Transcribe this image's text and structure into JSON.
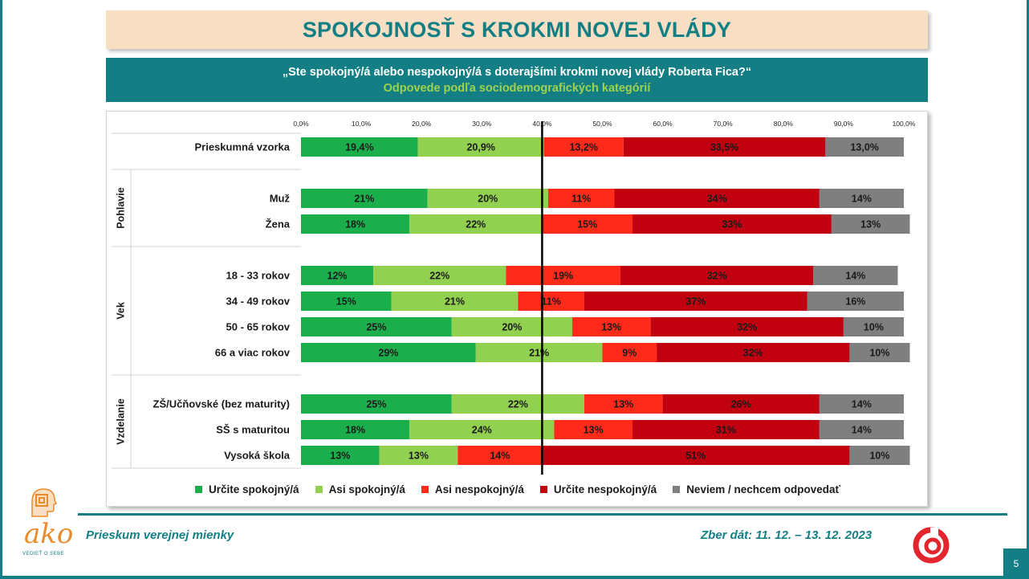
{
  "title": "SPOKOJNOSŤ S KROKMI NOVEJ VLÁDY",
  "question": "„Ste spokojný/á alebo nespokojný/á s doterajšími krokmi novej vlády Roberta Fica?“",
  "subtitle": "Odpovede podľa sociodemografických kategórií",
  "footer": {
    "left": "Prieskum verejnej mienky",
    "right": "Zber dát: 11. 12. – 13. 12. 2023",
    "page": "5",
    "logo_text": "ako",
    "logo_sub": "VEDIEŤ O SEBE"
  },
  "chart_data": {
    "type": "bar",
    "orientation": "horizontal",
    "stacked": true,
    "xlim": [
      0,
      100
    ],
    "x_ticks": [
      "0,0%",
      "10,0%",
      "20,0%",
      "30,0%",
      "40,0%",
      "50,0%",
      "60,0%",
      "70,0%",
      "80,0%",
      "90,0%",
      "100,0%"
    ],
    "reference_line_at": 40,
    "legend_position": "bottom",
    "series": [
      {
        "name": "Určite spokojný/á",
        "color": "#1aae4c"
      },
      {
        "name": "Asi spokojný/á",
        "color": "#92d050"
      },
      {
        "name": "Asi nespokojný/á",
        "color": "#ff2a1a"
      },
      {
        "name": "Určite nespokojný/á",
        "color": "#c00010"
      },
      {
        "name": "Neviem / nechcem odpovedať",
        "color": "#7f7f7f"
      }
    ],
    "groups": [
      {
        "name": "",
        "rows": [
          {
            "label": "Prieskumná vzorka",
            "values": [
              19.4,
              20.9,
              13.2,
              33.5,
              13.0
            ],
            "labels": [
              "19,4%",
              "20,9%",
              "13,2%",
              "33,5%",
              "13,0%"
            ]
          }
        ]
      },
      {
        "name": "Pohlavie",
        "rows": [
          {
            "label": "Muž",
            "values": [
              21,
              20,
              11,
              34,
              14
            ],
            "labels": [
              "21%",
              "20%",
              "11%",
              "34%",
              "14%"
            ]
          },
          {
            "label": "Žena",
            "values": [
              18,
              22,
              15,
              33,
              13
            ],
            "labels": [
              "18%",
              "22%",
              "15%",
              "33%",
              "13%"
            ]
          }
        ]
      },
      {
        "name": "Vek",
        "rows": [
          {
            "label": "18 - 33 rokov",
            "values": [
              12,
              22,
              19,
              32,
              14
            ],
            "labels": [
              "12%",
              "22%",
              "19%",
              "32%",
              "14%"
            ]
          },
          {
            "label": "34 - 49 rokov",
            "values": [
              15,
              21,
              11,
              37,
              16
            ],
            "labels": [
              "15%",
              "21%",
              "11%",
              "37%",
              "16%"
            ]
          },
          {
            "label": "50 - 65 rokov",
            "values": [
              25,
              20,
              13,
              32,
              10
            ],
            "labels": [
              "25%",
              "20%",
              "13%",
              "32%",
              "10%"
            ]
          },
          {
            "label": "66 a viac rokov",
            "values": [
              29,
              21,
              9,
              32,
              10
            ],
            "labels": [
              "29%",
              "21%",
              "9%",
              "32%",
              "10%"
            ]
          }
        ]
      },
      {
        "name": "Vzdelanie",
        "rows": [
          {
            "label": "ZŠ/Učňovské (bez maturity)",
            "values": [
              25,
              22,
              13,
              26,
              14
            ],
            "labels": [
              "25%",
              "22%",
              "13%",
              "26%",
              "14%"
            ]
          },
          {
            "label": "SŠ s maturitou",
            "values": [
              18,
              24,
              13,
              31,
              14
            ],
            "labels": [
              "18%",
              "24%",
              "13%",
              "31%",
              "14%"
            ]
          },
          {
            "label": "Vysoká škola",
            "values": [
              13,
              13,
              14,
              51,
              10
            ],
            "labels": [
              "13%",
              "13%",
              "14%",
              "51%",
              "10%"
            ]
          }
        ]
      }
    ]
  }
}
